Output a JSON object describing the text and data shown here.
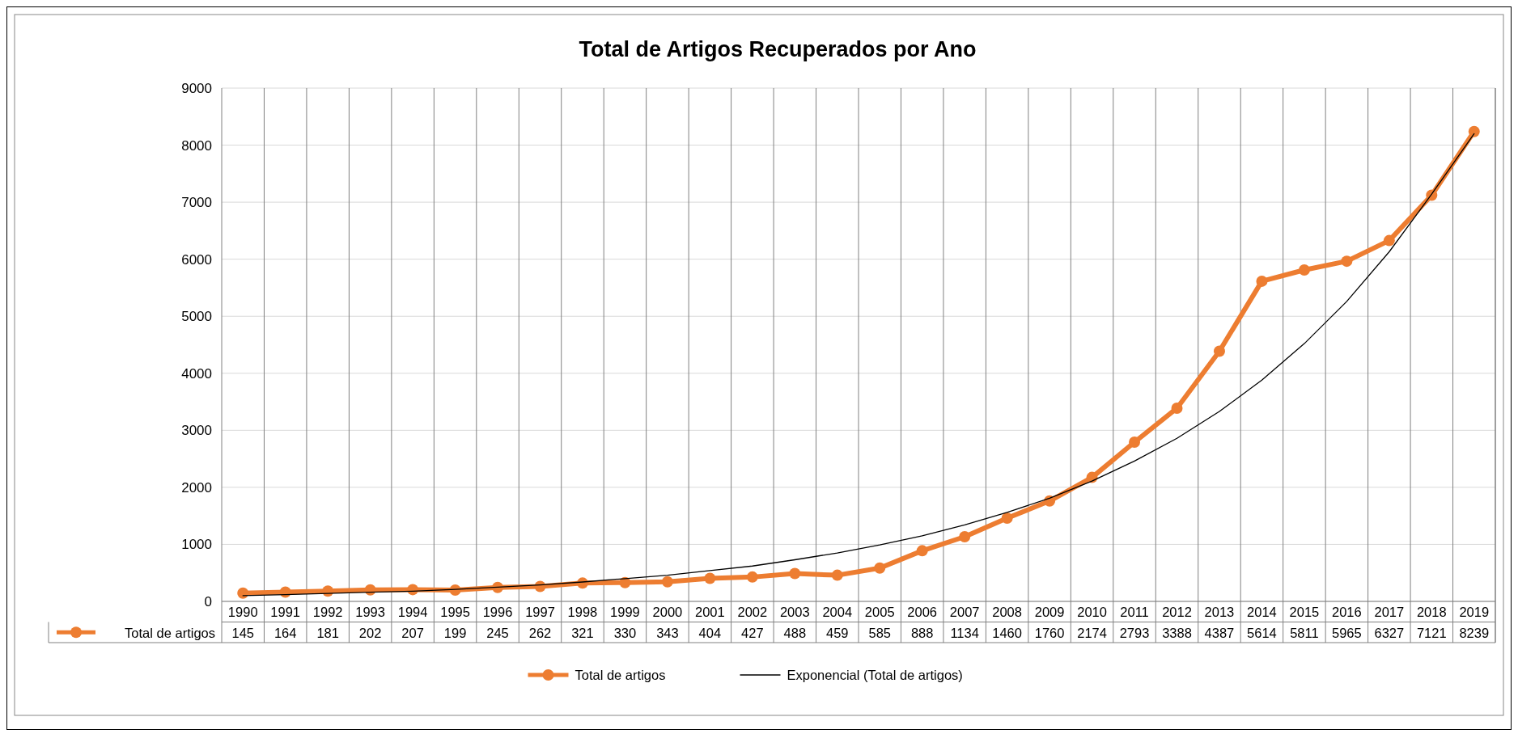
{
  "chart_data": {
    "type": "line",
    "title": "Total de Artigos Recuperados por Ano",
    "categories": [
      "1990",
      "1991",
      "1992",
      "1993",
      "1994",
      "1995",
      "1996",
      "1997",
      "1998",
      "1999",
      "2000",
      "2001",
      "2002",
      "2003",
      "2004",
      "2005",
      "2006",
      "2007",
      "2008",
      "2009",
      "2010",
      "2011",
      "2012",
      "2013",
      "2014",
      "2015",
      "2016",
      "2017",
      "2018",
      "2019"
    ],
    "series": [
      {
        "name": "Total de artigos",
        "color": "#ed7d31",
        "marker": "circle",
        "values": [
          145,
          164,
          181,
          202,
          207,
          199,
          245,
          262,
          321,
          330,
          343,
          404,
          427,
          488,
          459,
          585,
          888,
          1134,
          1460,
          1760,
          2174,
          2793,
          3388,
          4387,
          5614,
          5811,
          5965,
          6327,
          7121,
          8239
        ],
        "value_labels": [
          "145",
          "164",
          "181",
          "202",
          "207",
          "199",
          "245",
          "262",
          "321",
          "330",
          "343",
          "404",
          "427",
          "488",
          "459",
          "585",
          "888",
          "1134",
          "1460",
          "1760",
          "2174",
          "2793",
          "3388",
          "4387",
          "5614",
          "5811",
          "5965",
          "6327",
          "7121",
          "8239"
        ]
      },
      {
        "name": "Exponencial (Total de artigos)",
        "color": "#000000",
        "marker": "none",
        "values": [
          100,
          120,
          140,
          160,
          180,
          210,
          250,
          290,
          340,
          400,
          460,
          540,
          620,
          730,
          850,
          990,
          1150,
          1340,
          1560,
          1810,
          2110,
          2460,
          2860,
          3330,
          3880,
          4520,
          5260,
          6130,
          7140,
          8200
        ]
      }
    ],
    "ylim": [
      0,
      9000
    ],
    "yticks": [
      0,
      1000,
      2000,
      3000,
      4000,
      5000,
      6000,
      7000,
      8000,
      9000
    ],
    "grid": true,
    "legend": "bottom"
  }
}
